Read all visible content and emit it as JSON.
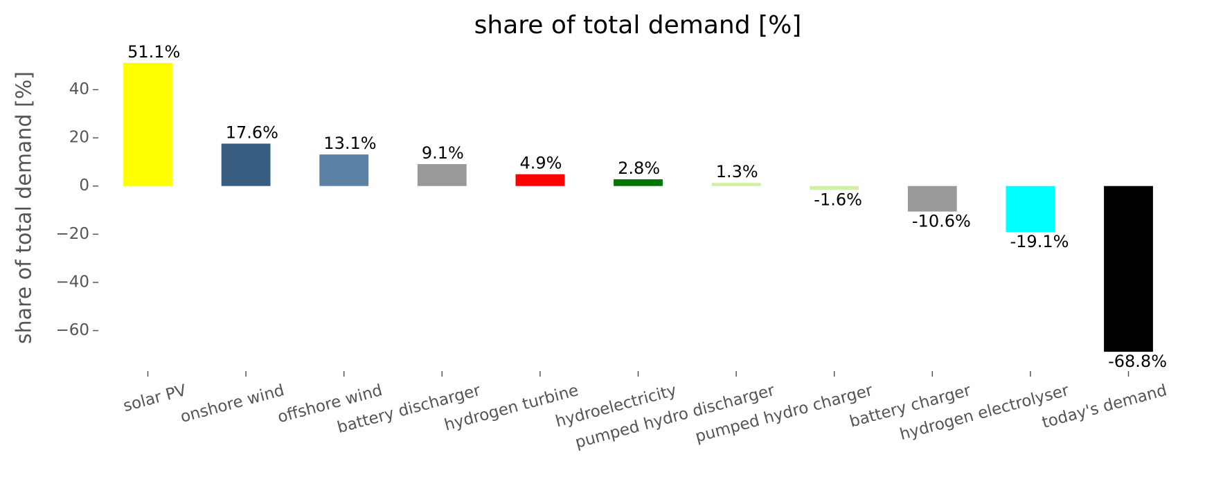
{
  "chart_data": {
    "type": "bar",
    "title": "share of total demand [%]",
    "ylabel": "share of total demand [%]",
    "categories": [
      "solar PV",
      "onshore wind",
      "offshore wind",
      "battery discharger",
      "hydrogen turbine",
      "hydroelectricity",
      "pumped hydro discharger",
      "pumped hydro charger",
      "battery charger",
      "hydrogen electrolyser",
      "today's demand"
    ],
    "values": [
      51.1,
      17.6,
      13.1,
      9.1,
      4.9,
      2.8,
      1.3,
      -1.6,
      -10.6,
      -19.1,
      -68.8
    ],
    "value_labels": [
      "51.1%",
      "17.6%",
      "13.1%",
      "9.1%",
      "4.9%",
      "2.8%",
      "1.3%",
      "-1.6%",
      "-10.6%",
      "-19.1%",
      "-68.8%"
    ],
    "colors": [
      "#ffff00",
      "#375e80",
      "#5b82a4",
      "#999999",
      "#ff0000",
      "#007700",
      "#d2f0a4",
      "#d2f0a4",
      "#999999",
      "#00ffff",
      "#000000"
    ],
    "ylim": [
      -74.8,
      57.1
    ],
    "yticks": [
      {
        "value": -60,
        "label": "−60"
      },
      {
        "value": -40,
        "label": "−40"
      },
      {
        "value": -20,
        "label": "−20"
      },
      0,
      20,
      40
    ],
    "grid": false
  }
}
